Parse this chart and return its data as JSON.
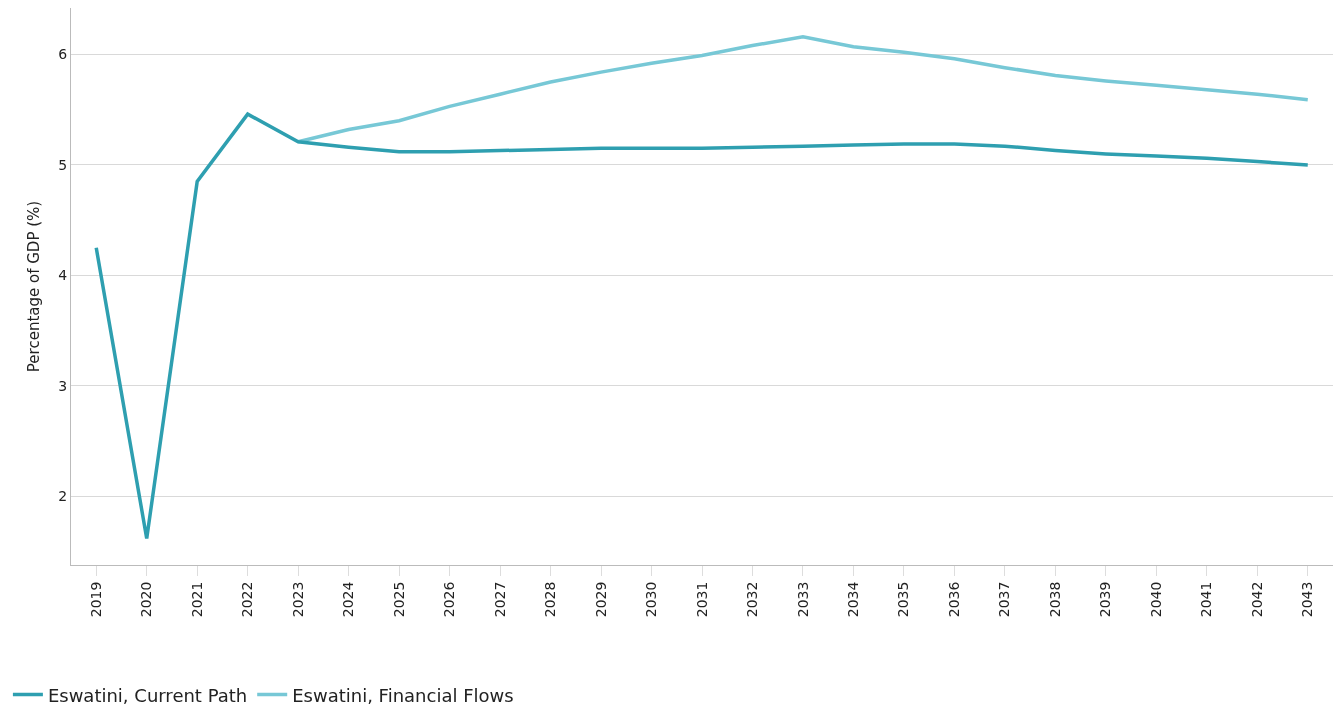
{
  "chart_data": {
    "type": "line",
    "ylabel": "Percentage of GDP (%)",
    "categories": [
      "2019",
      "2020",
      "2021",
      "2022",
      "2023",
      "2024",
      "2025",
      "2026",
      "2027",
      "2028",
      "2029",
      "2030",
      "2031",
      "2032",
      "2033",
      "2034",
      "2035",
      "2036",
      "2037",
      "2038",
      "2039",
      "2040",
      "2041",
      "2042",
      "2043"
    ],
    "series": [
      {
        "name": "Eswatini, Current Path",
        "color": "#2e9fb0",
        "values": [
          4.25,
          1.62,
          4.85,
          5.46,
          5.21,
          5.16,
          5.12,
          5.12,
          5.13,
          5.14,
          5.15,
          5.15,
          5.15,
          5.16,
          5.17,
          5.18,
          5.19,
          5.19,
          5.17,
          5.13,
          5.1,
          5.08,
          5.06,
          5.03,
          5.0
        ]
      },
      {
        "name": "Eswatini, Financial Flows",
        "color": "#77c8d6",
        "values": [
          null,
          null,
          null,
          null,
          5.21,
          5.32,
          5.4,
          5.53,
          5.64,
          5.75,
          5.84,
          5.92,
          5.99,
          6.08,
          6.16,
          6.07,
          6.02,
          5.96,
          5.88,
          5.81,
          5.76,
          5.72,
          5.68,
          5.64,
          5.59
        ]
      }
    ],
    "ylim": [
      1.38,
      6.42
    ],
    "yticks": [
      2,
      3,
      4,
      5,
      6
    ],
    "grid": "y",
    "legend": "bottom left",
    "marker": "none",
    "line_style": "solid"
  }
}
